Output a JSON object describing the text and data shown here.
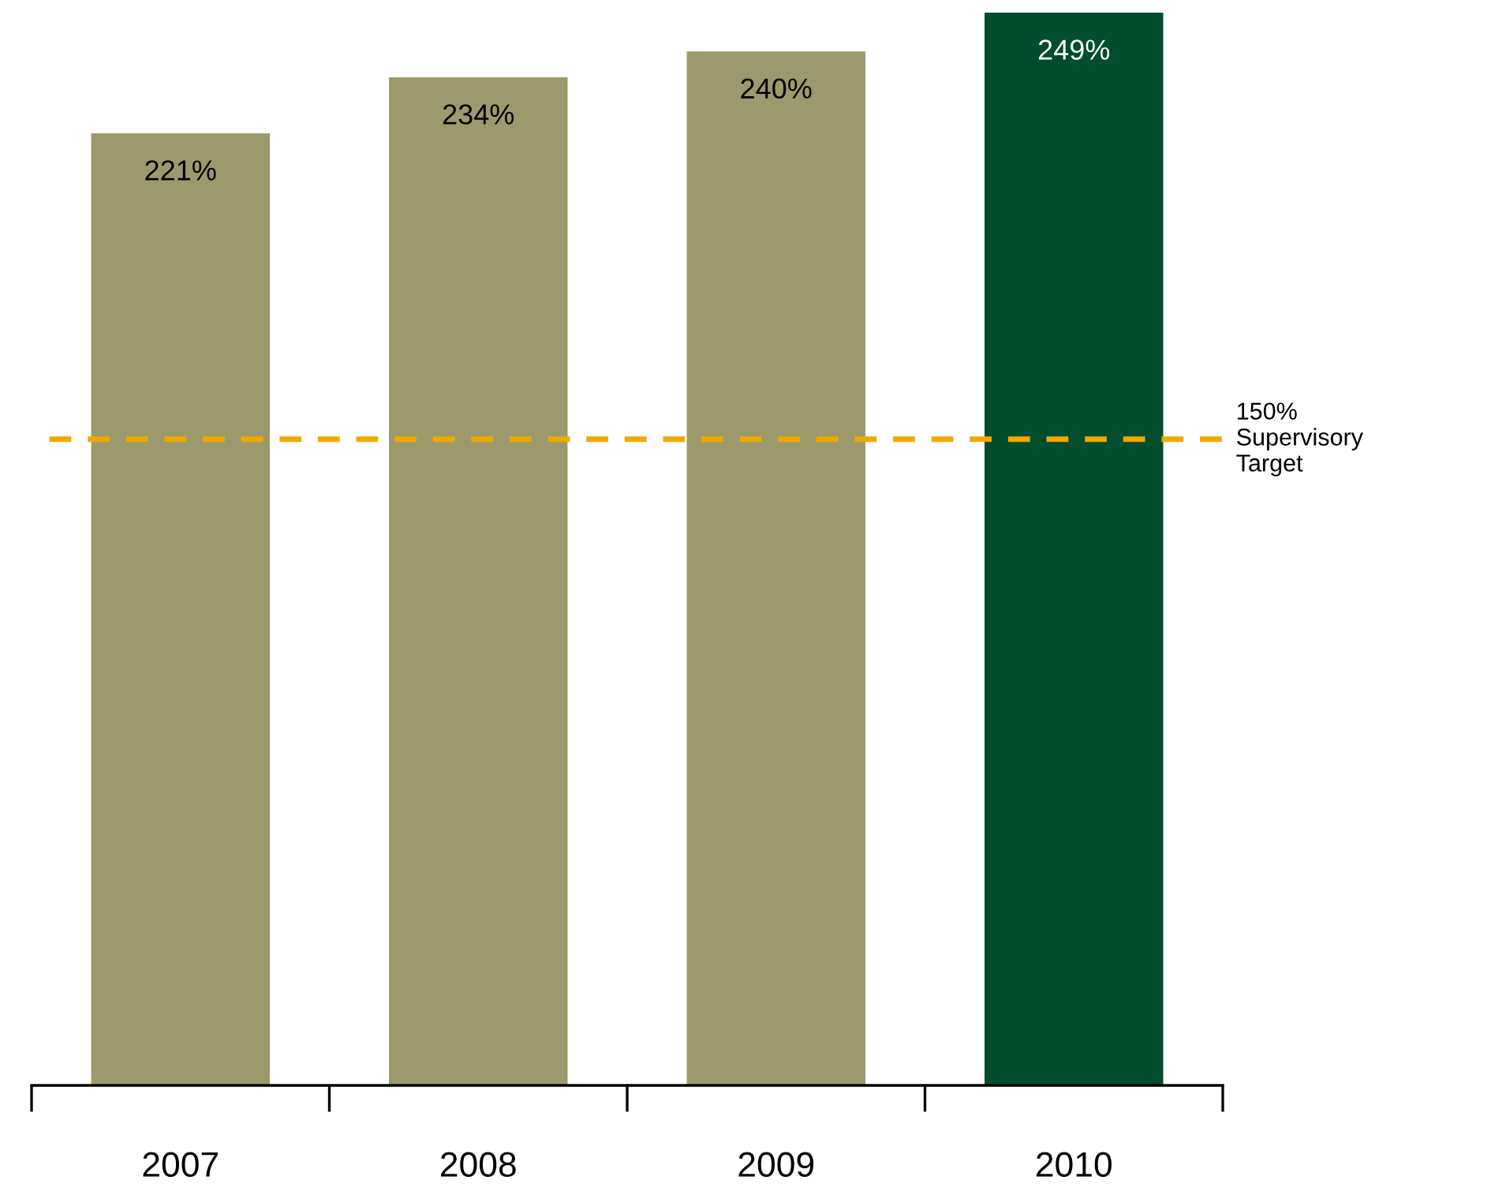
{
  "chart_data": {
    "type": "bar",
    "categories": [
      "2007",
      "2008",
      "2009",
      "2010"
    ],
    "values": [
      221,
      234,
      240,
      249
    ],
    "colors": [
      "#9c9a6c",
      "#9c9a6c",
      "#9c9a6c",
      "#024d2d"
    ],
    "data_labels": true,
    "value_labels": [
      "221%",
      "234%",
      "240%",
      "249%"
    ],
    "ref_lines": [
      {
        "axis": "y",
        "value": 150,
        "label": "150%\nSupervisory\nTarget",
        "color": "#f0a800",
        "line_style": "dashed"
      }
    ],
    "grid": false,
    "legend": false
  }
}
